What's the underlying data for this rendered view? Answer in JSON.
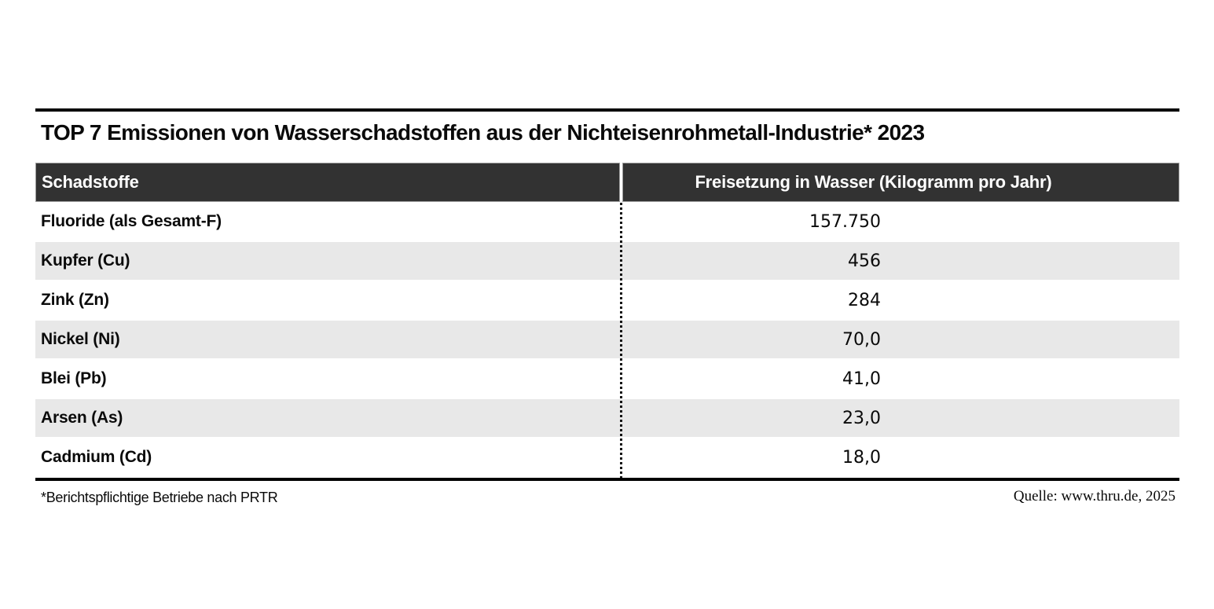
{
  "title": "TOP 7 Emissionen von Wasserschadstoffen aus der Nichteisenrohmetall-Industrie* 2023",
  "table": {
    "columns": [
      "Schadstoffe",
      "Freisetzung in Wasser (Kilogramm pro Jahr)"
    ],
    "rows": [
      {
        "label": "Fluoride (als Gesamt-F)",
        "value": "157.750"
      },
      {
        "label": "Kupfer (Cu)",
        "value": "456"
      },
      {
        "label": "Zink (Zn)",
        "value": "284"
      },
      {
        "label": "Nickel (Ni)",
        "value": "70,0"
      },
      {
        "label": "Blei (Pb)",
        "value": "41,0"
      },
      {
        "label": "Arsen (As)",
        "value": "23,0"
      },
      {
        "label": "Cadmium (Cd)",
        "value": "18,0"
      }
    ]
  },
  "footer": {
    "footnote": "*Berichtspflichtige Betriebe nach PRTR",
    "source": "Quelle: www.thru.de, 2025"
  },
  "colors": {
    "header_bg": "#323232",
    "stripe_bg": "#e8e8e8",
    "rule": "#000000",
    "header_text": "#ffffff"
  },
  "chart_data": {
    "type": "table",
    "title": "TOP 7 Emissionen von Wasserschadstoffen aus der Nichteisenrohmetall-Industrie* 2023",
    "columns": [
      "Schadstoffe",
      "Freisetzung in Wasser (Kilogramm pro Jahr)"
    ],
    "categories": [
      "Fluoride (als Gesamt-F)",
      "Kupfer (Cu)",
      "Zink (Zn)",
      "Nickel (Ni)",
      "Blei (Pb)",
      "Arsen (As)",
      "Cadmium (Cd)"
    ],
    "values": [
      157750,
      456,
      284,
      70.0,
      41.0,
      23.0,
      18.0
    ],
    "values_display": [
      "157.750",
      "456",
      "284",
      "70,0",
      "41,0",
      "23,0",
      "18,0"
    ],
    "unit": "Kilogramm pro Jahr",
    "footnote": "*Berichtspflichtige Betriebe nach PRTR",
    "source": "Quelle: www.thru.de, 2025",
    "layout": {
      "striped_rows": true,
      "dotted_column_divider": true
    }
  }
}
